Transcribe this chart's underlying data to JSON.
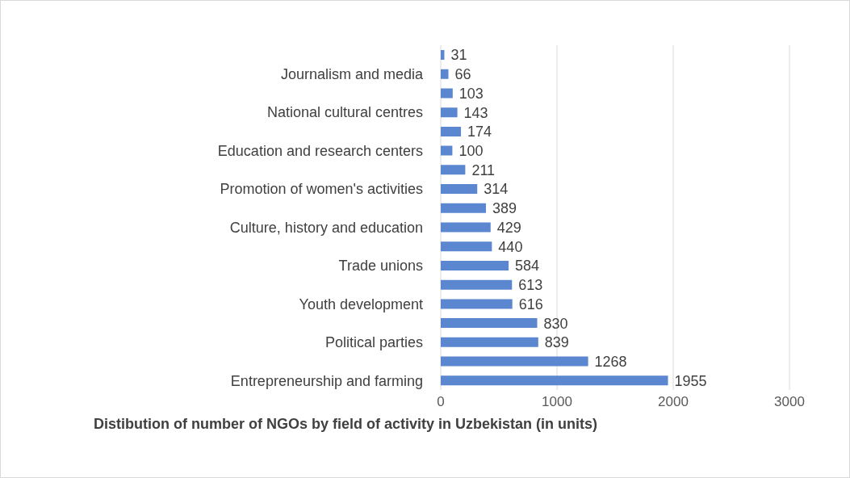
{
  "chart_data": {
    "type": "bar",
    "orientation": "horizontal",
    "title": "Distibution of number of NGOs by field of activity in Uzbekistan (in units)",
    "categories": [
      null,
      "Journalism and media",
      null,
      "National cultural centres",
      null,
      "Education and research centers",
      null,
      "Promotion of women's activities",
      null,
      "Culture, history and education",
      null,
      "Trade unions",
      null,
      "Youth development",
      null,
      "Political parties",
      null,
      "Entrepreneurship and farming"
    ],
    "values": [
      31,
      66,
      103,
      143,
      174,
      100,
      211,
      314,
      389,
      429,
      440,
      584,
      613,
      616,
      830,
      839,
      1268,
      1955
    ],
    "color": "#5b86d0",
    "xlim": [
      0,
      3000
    ],
    "xticks": [
      0,
      1000,
      2000,
      3000
    ],
    "grid": "x",
    "data_labels": true
  }
}
